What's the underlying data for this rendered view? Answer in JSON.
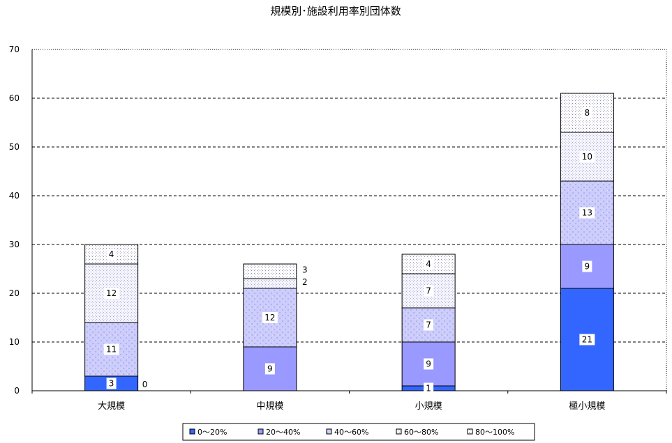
{
  "chart_data": {
    "type": "bar",
    "stacked": true,
    "title": "規模別･施設利用率別団体数",
    "categories": [
      "大規模",
      "中規模",
      "小規模",
      "極小規模"
    ],
    "series": [
      {
        "name": "0～20%",
        "values": [
          3,
          0,
          1,
          21
        ],
        "color": "#3366ff",
        "pattern": "solid"
      },
      {
        "name": "20～40%",
        "values": [
          0,
          9,
          9,
          9
        ],
        "color": "#9999ff",
        "pattern": "solid"
      },
      {
        "name": "40～60%",
        "values": [
          11,
          12,
          7,
          13
        ],
        "color": "#ccccff",
        "pattern": "mottle"
      },
      {
        "name": "60～80%",
        "values": [
          12,
          2,
          7,
          10
        ],
        "color": "#f4f4ff",
        "pattern": "dots-fine"
      },
      {
        "name": "80～100%",
        "values": [
          4,
          3,
          4,
          8
        ],
        "color": "#ffffff",
        "pattern": "dots-coarse"
      }
    ],
    "data_labels": [
      [
        "3",
        "0",
        "11",
        "12",
        "4"
      ],
      [
        "",
        "9",
        "12",
        "2",
        "3"
      ],
      [
        "1",
        "9",
        "7",
        "7",
        "4"
      ],
      [
        "21",
        "9",
        "13",
        "10",
        "8"
      ]
    ],
    "ylim": [
      0,
      70
    ],
    "yticks": [
      0,
      10,
      20,
      30,
      40,
      50,
      60,
      70
    ],
    "grid": "horizontal-dashed",
    "legend_position": "bottom",
    "xlabel": "",
    "ylabel": ""
  }
}
